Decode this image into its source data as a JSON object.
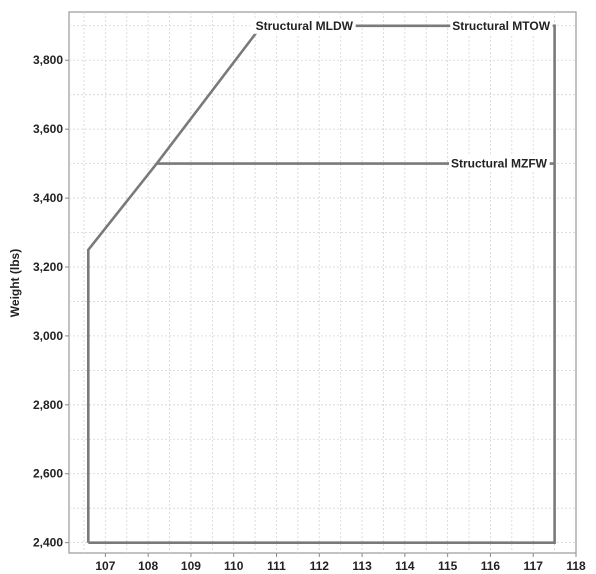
{
  "chart_data": {
    "type": "line",
    "title": "",
    "xlabel": "",
    "ylabel": "Weight (lbs)",
    "xlim": [
      106.15,
      118.0
    ],
    "ylim": [
      2370,
      3940
    ],
    "grid": true,
    "x_ticks": [
      107,
      108,
      109,
      110,
      111,
      112,
      113,
      114,
      115,
      116,
      117,
      118
    ],
    "x_tick_labels": [
      "107",
      "108",
      "109",
      "110",
      "111",
      "112",
      "113",
      "114",
      "115",
      "116",
      "117",
      "118"
    ],
    "y_ticks": [
      2400,
      2600,
      2800,
      3000,
      3200,
      3400,
      3600,
      3800
    ],
    "y_tick_labels": [
      "2,400",
      "2,600",
      "2,800",
      "3,000",
      "3,200",
      "3,400",
      "3,600",
      "3,800"
    ],
    "series": [
      {
        "role": "envelope",
        "color": "#7a7a7a",
        "x": [
          106.6,
          106.6,
          108.2,
          110.65,
          117.5,
          117.5,
          106.6
        ],
        "y": [
          2400,
          3250,
          3500,
          3900,
          3900,
          2400,
          2400
        ]
      },
      {
        "role": "limit-line",
        "color": "#7a7a7a",
        "x": [
          108.2,
          117.5
        ],
        "y": [
          3500,
          3500
        ]
      }
    ],
    "annotations": [
      {
        "text": "Structural MLDW",
        "x": 111.65,
        "y": 3900
      },
      {
        "text": "Structural MTOW",
        "x": 116.25,
        "y": 3900
      },
      {
        "text": "Structural MZFW",
        "x": 116.2,
        "y": 3500
      }
    ]
  }
}
